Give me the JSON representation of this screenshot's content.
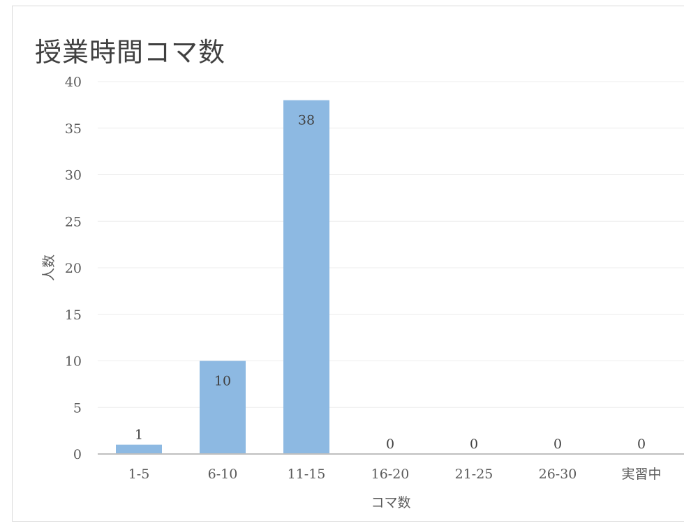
{
  "chart_data": {
    "type": "bar",
    "title": "授業時間コマ数",
    "xlabel": "コマ数",
    "ylabel": "人数",
    "categories": [
      "1-5",
      "6-10",
      "11-15",
      "16-20",
      "21-25",
      "26-30",
      "実習中"
    ],
    "values": [
      1,
      10,
      38,
      0,
      0,
      0,
      0
    ],
    "ylim": [
      0,
      40
    ],
    "yticks": [
      0,
      5,
      10,
      15,
      20,
      25,
      30,
      35,
      40
    ],
    "grid": true,
    "bar_color": "#8db9e2"
  }
}
